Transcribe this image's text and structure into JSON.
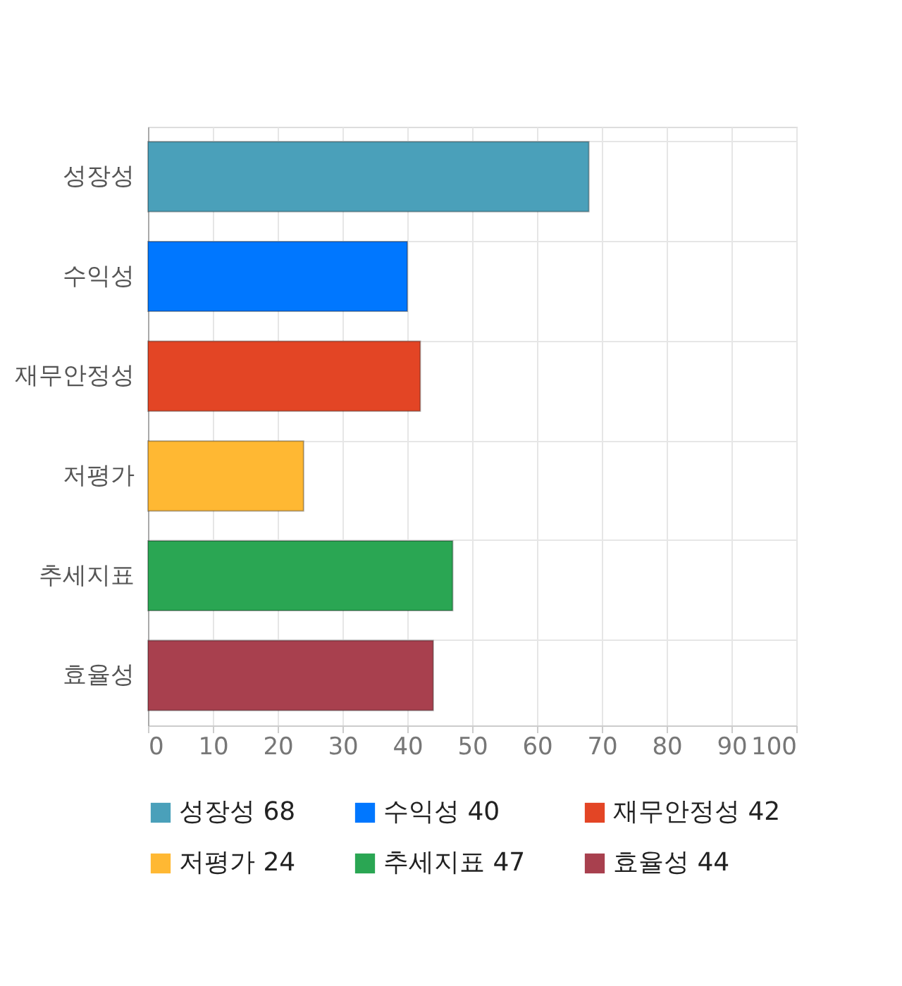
{
  "chart_data": {
    "type": "bar",
    "orientation": "horizontal",
    "categories": [
      "성장성",
      "수익성",
      "재무안정성",
      "저평가",
      "추세지표",
      "효율성"
    ],
    "series": [
      {
        "name": "성장성 68",
        "color": "#4aa0ba",
        "values": [
          68,
          null,
          null,
          null,
          null,
          null
        ]
      },
      {
        "name": "수익성 40",
        "color": "#0077ff",
        "values": [
          null,
          40,
          null,
          null,
          null,
          null
        ]
      },
      {
        "name": "재무안정성 42",
        "color": "#e34525",
        "values": [
          null,
          null,
          42,
          null,
          null,
          null
        ]
      },
      {
        "name": "저평가 24",
        "color": "#ffb833",
        "values": [
          null,
          null,
          null,
          24,
          null,
          null
        ]
      },
      {
        "name": "추세지표 47",
        "color": "#2aa653",
        "values": [
          null,
          null,
          null,
          null,
          47,
          null
        ]
      },
      {
        "name": "효율성 44",
        "color": "#a8404e",
        "values": [
          null,
          null,
          null,
          null,
          null,
          44
        ]
      }
    ],
    "xlim": [
      0,
      100
    ],
    "xticks": [
      0,
      10,
      20,
      30,
      40,
      50,
      60,
      70,
      80,
      90,
      100
    ],
    "grid": true,
    "legend": "bottom"
  }
}
